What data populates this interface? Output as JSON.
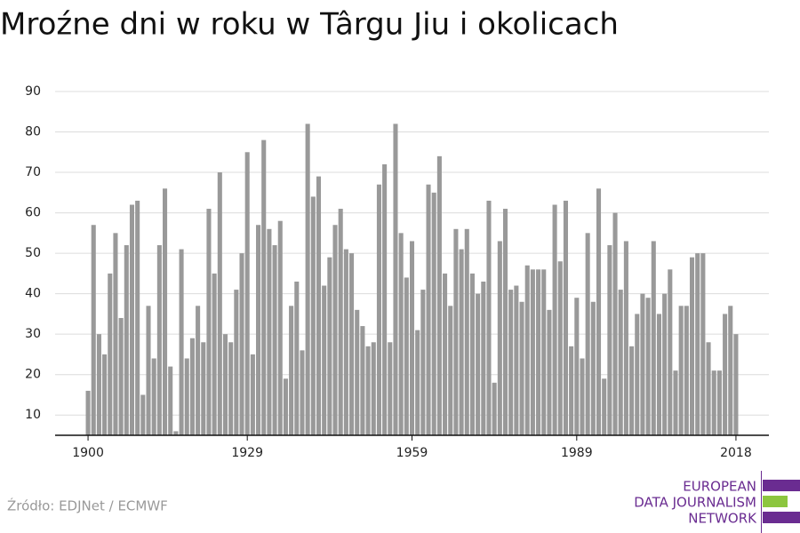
{
  "chart_data": {
    "type": "bar",
    "title": "Mroźne dni w roku w Târgu Jiu i okolicach",
    "x": [
      1900,
      1901,
      1902,
      1903,
      1904,
      1905,
      1906,
      1907,
      1908,
      1909,
      1910,
      1911,
      1912,
      1913,
      1914,
      1915,
      1916,
      1917,
      1918,
      1919,
      1920,
      1921,
      1922,
      1923,
      1924,
      1925,
      1926,
      1927,
      1928,
      1929,
      1930,
      1931,
      1932,
      1933,
      1934,
      1935,
      1936,
      1937,
      1938,
      1939,
      1940,
      1941,
      1942,
      1943,
      1944,
      1945,
      1946,
      1947,
      1948,
      1949,
      1950,
      1951,
      1952,
      1953,
      1954,
      1955,
      1956,
      1957,
      1958,
      1959,
      1960,
      1961,
      1962,
      1963,
      1964,
      1965,
      1966,
      1967,
      1968,
      1969,
      1970,
      1971,
      1972,
      1973,
      1974,
      1975,
      1976,
      1977,
      1978,
      1979,
      1980,
      1981,
      1982,
      1983,
      1984,
      1985,
      1986,
      1987,
      1988,
      1989,
      1990,
      1991,
      1992,
      1993,
      1994,
      1995,
      1996,
      1997,
      1998,
      1999,
      2000,
      2001,
      2002,
      2003,
      2004,
      2005,
      2006,
      2007,
      2008,
      2009,
      2010,
      2011,
      2012,
      2013,
      2014,
      2015,
      2016,
      2017,
      2018
    ],
    "values": [
      16,
      57,
      30,
      25,
      45,
      55,
      34,
      52,
      62,
      63,
      15,
      37,
      24,
      52,
      66,
      22,
      6,
      51,
      24,
      29,
      37,
      28,
      61,
      45,
      70,
      30,
      28,
      41,
      50,
      75,
      25,
      57,
      78,
      56,
      52,
      58,
      19,
      37,
      43,
      26,
      82,
      64,
      69,
      42,
      49,
      57,
      61,
      51,
      50,
      36,
      32,
      27,
      28,
      67,
      72,
      28,
      82,
      55,
      44,
      53,
      31,
      41,
      67,
      65,
      74,
      45,
      37,
      56,
      51,
      56,
      45,
      40,
      43,
      63,
      18,
      53,
      61,
      41,
      42,
      38,
      47,
      46,
      46,
      46,
      36,
      62,
      48,
      63,
      27,
      39,
      24,
      55,
      38,
      66,
      19,
      52,
      60,
      41,
      53,
      27,
      35,
      40,
      39,
      53,
      35,
      40,
      46,
      21,
      37,
      37,
      49,
      50,
      50,
      28,
      21,
      21,
      35,
      37,
      30
    ],
    "color": "#999999",
    "xlim": [
      1894,
      2024
    ],
    "xticks": [
      1900,
      1929,
      1959,
      1989,
      2018
    ],
    "ylim": [
      5,
      90
    ],
    "yticks": [
      10,
      20,
      30,
      40,
      50,
      60,
      70,
      80,
      90
    ],
    "grid": true
  },
  "footer": {
    "source": "Źródło: EDJNet / ECMWF",
    "logo": [
      "EUROPEAN",
      "DATA JOURNALISM",
      "NETWORK"
    ]
  }
}
